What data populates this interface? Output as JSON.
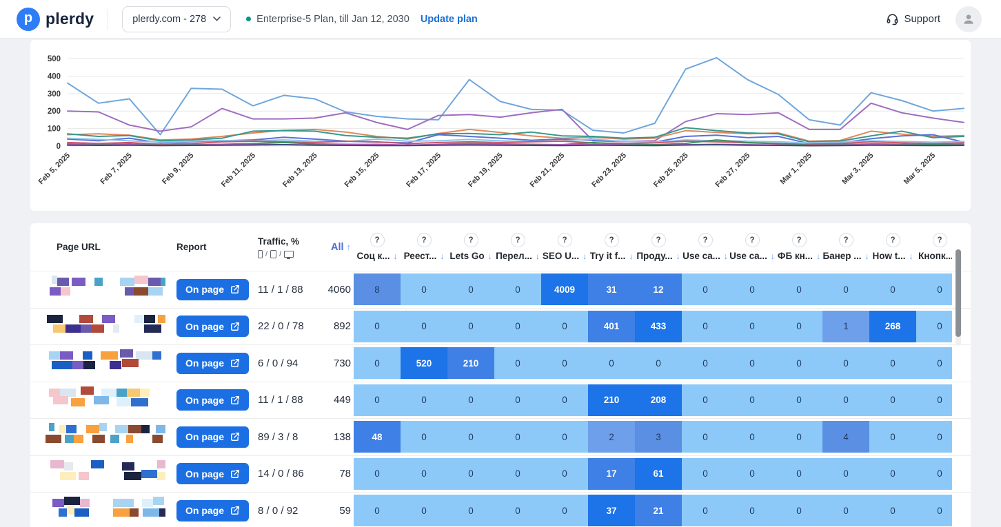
{
  "header": {
    "logo_text": "plerdy",
    "logo_letter": "p",
    "domain_selector": "plerdy.com - 278",
    "plan_text": "Enterprise-5 Plan, till Jan 12, 2030",
    "plan_dot_color": "#0d9488",
    "update_plan": "Update plan",
    "update_plan_color": "#1a6fd4",
    "support_label": "Support"
  },
  "chart_data": {
    "type": "line",
    "title": "",
    "xlabel": "",
    "ylabel": "",
    "x": [
      "Feb 5, 2025",
      "Feb 6, 2025",
      "Feb 7, 2025",
      "Feb 8, 2025",
      "Feb 9, 2025",
      "Feb 10, 2025",
      "Feb 11, 2025",
      "Feb 12, 2025",
      "Feb 13, 2025",
      "Feb 14, 2025",
      "Feb 15, 2025",
      "Feb 16, 2025",
      "Feb 17, 2025",
      "Feb 18, 2025",
      "Feb 19, 2025",
      "Feb 20, 2025",
      "Feb 21, 2025",
      "Feb 22, 2025",
      "Feb 23, 2025",
      "Feb 24, 2025",
      "Feb 25, 2025",
      "Feb 26, 2025",
      "Feb 27, 2025",
      "Feb 28, 2025",
      "Mar 1, 2025",
      "Mar 2, 2025",
      "Mar 3, 2025",
      "Mar 4, 2025",
      "Mar 5, 2025",
      "Mar 6, 2025"
    ],
    "xtick_every": 2,
    "ylim": [
      0,
      520
    ],
    "yticks": [
      0,
      100,
      200,
      300,
      400,
      500
    ],
    "grid": true,
    "legend_position": "none",
    "series": [
      {
        "name": "series-blue",
        "color": "#6FA6DC",
        "values": [
          360,
          245,
          270,
          65,
          330,
          325,
          230,
          290,
          270,
          195,
          170,
          155,
          150,
          380,
          255,
          210,
          205,
          90,
          75,
          130,
          440,
          505,
          380,
          295,
          150,
          120,
          305,
          260,
          200,
          215
        ]
      },
      {
        "name": "series-purple",
        "color": "#A06CC0",
        "values": [
          200,
          195,
          120,
          85,
          110,
          215,
          155,
          155,
          160,
          190,
          135,
          95,
          175,
          180,
          165,
          190,
          210,
          30,
          25,
          30,
          140,
          185,
          180,
          190,
          95,
          95,
          245,
          190,
          160,
          135
        ]
      },
      {
        "name": "series-orange",
        "color": "#E0885C",
        "values": [
          65,
          70,
          62,
          35,
          40,
          55,
          75,
          90,
          95,
          80,
          55,
          40,
          72,
          95,
          78,
          58,
          45,
          50,
          40,
          45,
          88,
          78,
          70,
          75,
          28,
          32,
          85,
          68,
          55,
          60
        ]
      },
      {
        "name": "series-teal",
        "color": "#35998C",
        "values": [
          70,
          55,
          60,
          30,
          35,
          45,
          85,
          88,
          85,
          60,
          50,
          45,
          70,
          72,
          65,
          80,
          58,
          55,
          45,
          50,
          105,
          88,
          75,
          70,
          24,
          28,
          58,
          85,
          48,
          55
        ]
      },
      {
        "name": "series-indigo",
        "color": "#5A6FD8",
        "values": [
          40,
          30,
          45,
          18,
          25,
          30,
          35,
          50,
          40,
          28,
          22,
          18,
          65,
          55,
          45,
          33,
          40,
          33,
          28,
          22,
          55,
          62,
          48,
          55,
          14,
          18,
          42,
          58,
          65,
          22
        ]
      },
      {
        "name": "series-sky",
        "color": "#8FC3EA",
        "values": [
          45,
          38,
          30,
          22,
          28,
          32,
          30,
          35,
          28,
          25,
          40,
          28,
          30,
          38,
          30,
          26,
          30,
          40,
          26,
          22,
          35,
          30,
          28,
          24,
          18,
          22,
          30,
          26,
          22,
          26
        ]
      },
      {
        "name": "series-red",
        "color": "#C9566A",
        "values": [
          20,
          15,
          20,
          10,
          14,
          24,
          28,
          24,
          20,
          28,
          24,
          14,
          20,
          24,
          20,
          24,
          28,
          18,
          14,
          18,
          28,
          24,
          18,
          14,
          10,
          14,
          24,
          18,
          14,
          18
        ]
      },
      {
        "name": "series-green",
        "color": "#3F8F5A",
        "values": [
          12,
          8,
          12,
          5,
          8,
          10,
          15,
          20,
          12,
          10,
          8,
          5,
          10,
          15,
          12,
          10,
          8,
          20,
          10,
          8,
          15,
          35,
          20,
          15,
          5,
          8,
          12,
          10,
          8,
          10
        ]
      },
      {
        "name": "series-magenta",
        "color": "#B85CB8",
        "values": [
          8,
          6,
          8,
          4,
          6,
          8,
          10,
          8,
          6,
          8,
          10,
          6,
          8,
          10,
          8,
          6,
          8,
          10,
          6,
          4,
          8,
          10,
          8,
          6,
          4,
          6,
          8,
          6,
          4,
          6
        ]
      },
      {
        "name": "series-navy",
        "color": "#3A4E7A",
        "values": [
          5,
          4,
          5,
          3,
          4,
          5,
          6,
          8,
          5,
          4,
          3,
          3,
          5,
          6,
          5,
          4,
          3,
          5,
          4,
          3,
          6,
          8,
          5,
          4,
          2,
          3,
          5,
          4,
          3,
          4
        ]
      }
    ]
  },
  "table": {
    "columns": {
      "page_url": "Page URL",
      "report": "Report",
      "traffic_label": "Traffic, %",
      "traffic_devices_hint": "mobile / tablet / desktop",
      "all_label": "All",
      "sort_up_icon": "↑",
      "sort_down_icon": "↓",
      "help_icon": "?"
    },
    "event_columns": [
      "Соц к...",
      "Реест...",
      "Lets Go",
      "Перел...",
      "SEO U...",
      "Try it f...",
      "Проду...",
      "Use ca...",
      "Use ca...",
      "ФБ кн...",
      "Банер ...",
      "How t...",
      "Кнопк..."
    ],
    "on_page_label": "On page",
    "button_color": "#1c6fe3",
    "heat_shades": [
      {
        "bg": "#8DC9F8",
        "fg": "#1F3C61"
      },
      {
        "bg": "#6D9FEA",
        "fg": "#1F3C61"
      },
      {
        "bg": "#5A8FE4",
        "fg": "#1F3C61"
      },
      {
        "bg": "#3E80E5",
        "fg": "#FFFFFF"
      },
      {
        "bg": "#1D73E8",
        "fg": "#FFFFFF"
      }
    ],
    "rows": [
      {
        "traffic": "11 / 1 / 88",
        "all": "4060",
        "cells": [
          [
            8,
            2
          ],
          [
            0,
            0
          ],
          [
            0,
            0
          ],
          [
            0,
            0
          ],
          [
            4009,
            4
          ],
          [
            31,
            3
          ],
          [
            12,
            3
          ],
          [
            0,
            0
          ],
          [
            0,
            0
          ],
          [
            0,
            0
          ],
          [
            0,
            0
          ],
          [
            0,
            0
          ],
          [
            0,
            0
          ]
        ]
      },
      {
        "traffic": "22 / 0 / 78",
        "all": "892",
        "cells": [
          [
            0,
            0
          ],
          [
            0,
            0
          ],
          [
            0,
            0
          ],
          [
            0,
            0
          ],
          [
            0,
            0
          ],
          [
            401,
            3
          ],
          [
            433,
            4
          ],
          [
            0,
            0
          ],
          [
            0,
            0
          ],
          [
            0,
            0
          ],
          [
            1,
            1
          ],
          [
            268,
            4
          ],
          [
            0,
            0
          ]
        ]
      },
      {
        "traffic": "6 / 0 / 94",
        "all": "730",
        "cells": [
          [
            0,
            0
          ],
          [
            520,
            4
          ],
          [
            210,
            3
          ],
          [
            0,
            0
          ],
          [
            0,
            0
          ],
          [
            0,
            0
          ],
          [
            0,
            0
          ],
          [
            0,
            0
          ],
          [
            0,
            0
          ],
          [
            0,
            0
          ],
          [
            0,
            0
          ],
          [
            0,
            0
          ],
          [
            0,
            0
          ]
        ]
      },
      {
        "traffic": "11 / 1 / 88",
        "all": "449",
        "cells": [
          [
            0,
            0
          ],
          [
            0,
            0
          ],
          [
            0,
            0
          ],
          [
            0,
            0
          ],
          [
            0,
            0
          ],
          [
            210,
            4
          ],
          [
            208,
            4
          ],
          [
            0,
            0
          ],
          [
            0,
            0
          ],
          [
            0,
            0
          ],
          [
            0,
            0
          ],
          [
            0,
            0
          ],
          [
            0,
            0
          ]
        ]
      },
      {
        "traffic": "89 / 3 / 8",
        "all": "138",
        "cells": [
          [
            48,
            3
          ],
          [
            0,
            0
          ],
          [
            0,
            0
          ],
          [
            0,
            0
          ],
          [
            0,
            0
          ],
          [
            2,
            1
          ],
          [
            3,
            2
          ],
          [
            0,
            0
          ],
          [
            0,
            0
          ],
          [
            0,
            0
          ],
          [
            4,
            2
          ],
          [
            0,
            0
          ],
          [
            0,
            0
          ]
        ]
      },
      {
        "traffic": "14 / 0 / 86",
        "all": "78",
        "cells": [
          [
            0,
            0
          ],
          [
            0,
            0
          ],
          [
            0,
            0
          ],
          [
            0,
            0
          ],
          [
            0,
            0
          ],
          [
            17,
            3
          ],
          [
            61,
            4
          ],
          [
            0,
            0
          ],
          [
            0,
            0
          ],
          [
            0,
            0
          ],
          [
            0,
            0
          ],
          [
            0,
            0
          ],
          [
            0,
            0
          ]
        ]
      },
      {
        "traffic": "8 / 0 / 92",
        "all": "59",
        "cells": [
          [
            0,
            0
          ],
          [
            0,
            0
          ],
          [
            0,
            0
          ],
          [
            0,
            0
          ],
          [
            0,
            0
          ],
          [
            37,
            4
          ],
          [
            21,
            3
          ],
          [
            0,
            0
          ],
          [
            0,
            0
          ],
          [
            0,
            0
          ],
          [
            0,
            0
          ],
          [
            0,
            0
          ],
          [
            0,
            0
          ]
        ]
      }
    ],
    "mosaic_palette": [
      "#2f6fd0",
      "#1b5fc4",
      "#7db8e8",
      "#a8d4f2",
      "#def0fb",
      "#f9a03f",
      "#f7c873",
      "#fdeebc",
      "#e8b8d0",
      "#f5c6cb",
      "#3b2f8f",
      "#6a5aae",
      "#8a4a2f",
      "#232a57",
      "#1a2340",
      "#d9e6f2",
      "#4aa3c7",
      "#7a5cc4",
      "#b04a3a",
      "#e6e9ee"
    ],
    "mosaic_seeds": [
      3,
      9,
      14,
      21,
      27,
      33,
      41
    ]
  }
}
